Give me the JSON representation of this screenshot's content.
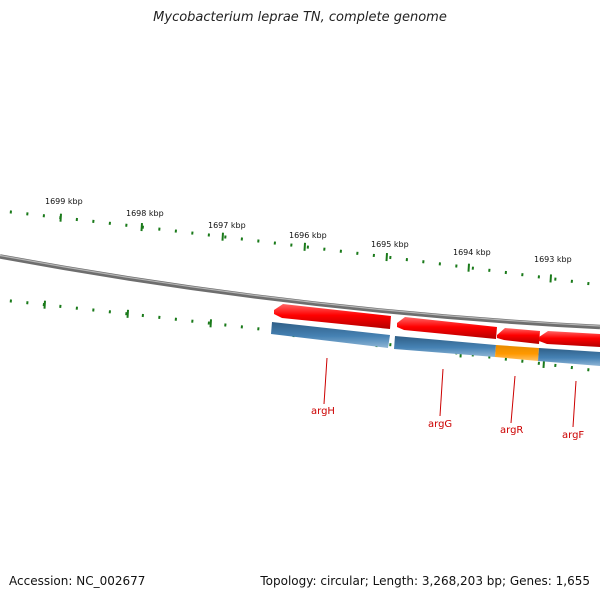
{
  "title": "Mycobacterium leprae TN, complete genome",
  "accession_label": "Accession: NC_002677",
  "summary_label": "Topology: circular; Length: 3,268,203 bp; Genes: 1,655",
  "scale_labels": [
    "1699 kbp",
    "1698 kbp",
    "1697 kbp",
    "1696 kbp",
    "1695 kbp",
    "1694 kbp",
    "1693 kbp"
  ],
  "genes": [
    {
      "name": "argH",
      "strand": "reverse",
      "color": "#ff0000"
    },
    {
      "name": "argG",
      "strand": "reverse",
      "color": "#ff0000"
    },
    {
      "name": "argR",
      "strand": "reverse",
      "color": "#ff0000"
    },
    {
      "name": "argF",
      "strand": "reverse",
      "color": "#ff0000"
    }
  ],
  "gene_label_color": "#cc0000",
  "cds_color": "#4682b4",
  "highlight_cds_color": "#ff9900",
  "backbone_color": "#808080",
  "tick_color": "#1a7a1a"
}
